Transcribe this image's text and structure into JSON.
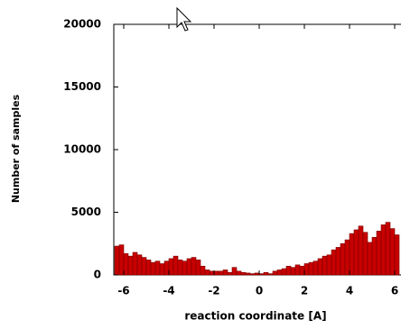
{
  "chart_data": {
    "type": "histogram",
    "x_label": "reaction coordinate [A]",
    "y_label": "Number of samples",
    "bins": [
      -6.4,
      -6.2,
      -6,
      -5.8,
      -5.6,
      -5.4,
      -5.2,
      -5,
      -4.8,
      -4.6,
      -4.4,
      -4.2,
      -4,
      -3.8,
      -3.6,
      -3.4,
      -3.2,
      -3,
      -2.8,
      -2.6,
      -2.4,
      -2.2,
      -2,
      -1.8,
      -1.6,
      -1.4,
      -1.2,
      -1,
      -0.8,
      -0.6,
      -0.4,
      -0.2,
      0,
      0.2,
      0.4,
      0.6,
      0.8,
      1,
      1.2,
      1.4,
      1.6,
      1.8,
      2,
      2.2,
      2.4,
      2.6,
      2.8,
      3,
      3.2,
      3.4,
      3.6,
      3.8,
      4,
      4.2,
      4.4,
      4.6,
      4.8,
      5,
      5.2,
      5.4,
      5.6,
      5.8,
      6,
      6.2
    ],
    "counts": [
      2300,
      2400,
      1700,
      1500,
      1800,
      1600,
      1400,
      1200,
      1000,
      1100,
      900,
      1100,
      1300,
      1500,
      1200,
      1100,
      1300,
      1400,
      1200,
      700,
      400,
      300,
      300,
      300,
      400,
      200,
      600,
      300,
      200,
      150,
      100,
      150,
      100,
      200,
      100,
      300,
      400,
      500,
      700,
      600,
      800,
      700,
      900,
      1000,
      1100,
      1300,
      1500,
      1600,
      2000,
      2200,
      2500,
      2800,
      3300,
      3600,
      3900,
      3400,
      2600,
      3000,
      3500,
      4000,
      4200,
      3700,
      3200
    ],
    "color": "#c80000",
    "xlim": [
      -6.44,
      6.28
    ],
    "xticks": [
      -6,
      -4,
      -2,
      0,
      2,
      4,
      6
    ],
    "ylim": [
      0,
      20000
    ],
    "yticks": [
      0,
      5000,
      10000,
      15000,
      20000
    ]
  }
}
